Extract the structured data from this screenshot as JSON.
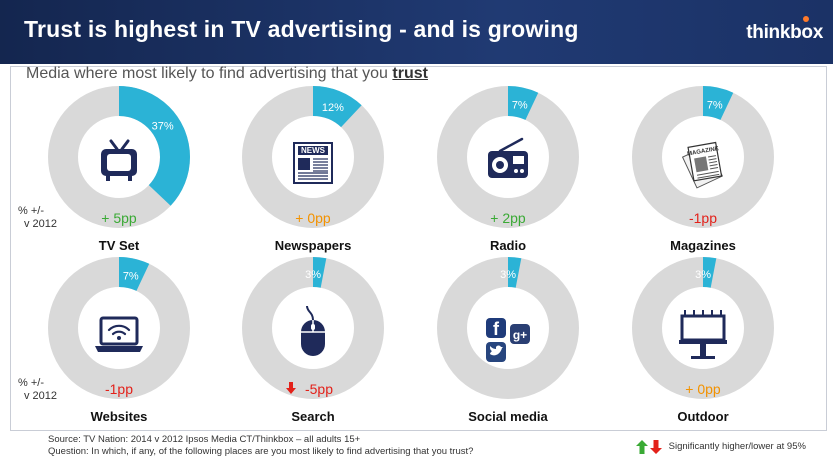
{
  "header": {
    "title": "Trust is highest in TV advertising - and is growing",
    "brand": "thinkbox"
  },
  "subtitle": {
    "prefix": "Media where most likely to find advertising that you ",
    "emphasis": "trust"
  },
  "row_labels": [
    "% +/-",
    "v 2012"
  ],
  "colors": {
    "ring": "#d9d9d9",
    "segment": "#2bb3d6",
    "icon": "#1f2a5a",
    "up": "#3aaa35",
    "flat": "#f39200",
    "down": "#e3211a"
  },
  "chart_data": {
    "type": "pie",
    "title": "Media where most likely to find advertising that you trust",
    "unit": "%",
    "items": [
      {
        "name": "TV Set",
        "value": 37,
        "label": "37%",
        "change": "+ 5pp",
        "change_type": "up",
        "icon": "tv-icon"
      },
      {
        "name": "Newspapers",
        "value": 12,
        "label": "12%",
        "change": "+ 0pp",
        "change_type": "flat",
        "icon": "newspaper-icon"
      },
      {
        "name": "Radio",
        "value": 7,
        "label": "7%",
        "change": "+ 2pp",
        "change_type": "up",
        "icon": "radio-icon"
      },
      {
        "name": "Magazines",
        "value": 7,
        "label": "7%",
        "change": "-1pp",
        "change_type": "down",
        "icon": "magazine-icon"
      },
      {
        "name": "Websites",
        "value": 7,
        "label": "7%",
        "change": "-1pp",
        "change_type": "down",
        "icon": "laptop-wifi-icon"
      },
      {
        "name": "Search",
        "value": 3,
        "label": "3%",
        "change": "-5pp",
        "change_type": "down",
        "significant": "down",
        "icon": "mouse-icon"
      },
      {
        "name": "Social media",
        "value": 3,
        "label": "3%",
        "change": "",
        "change_type": "none",
        "icon": "social-media-icon"
      },
      {
        "name": "Outdoor",
        "value": 3,
        "label": "3%",
        "change": "+ 0pp",
        "change_type": "flat",
        "icon": "billboard-icon"
      }
    ]
  },
  "footer": {
    "source": "Source: TV Nation: 2014 v 2012 Ipsos Media CT/Thinkbox – all adults 15+",
    "question": "Question: In which, if any, of the following places are you most likely to find advertising that you trust?"
  },
  "legend": {
    "text": "Significantly higher/lower at 95%"
  }
}
